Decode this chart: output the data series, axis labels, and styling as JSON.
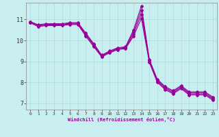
{
  "title": "",
  "xlabel": "Windchill (Refroidissement éolien,°C)",
  "ylabel": "",
  "bg_color": "#c8eef0",
  "grid_color": "#aadddd",
  "line_color": "#990099",
  "marker": "D",
  "markersize": 2.0,
  "linewidth": 0.8,
  "xlim": [
    -0.5,
    23.5
  ],
  "ylim": [
    6.7,
    11.8
  ],
  "yticks": [
    7,
    8,
    9,
    10,
    11
  ],
  "xticks": [
    0,
    1,
    2,
    3,
    4,
    5,
    6,
    7,
    8,
    9,
    10,
    11,
    12,
    13,
    14,
    15,
    16,
    17,
    18,
    19,
    20,
    21,
    22,
    23
  ],
  "series": [
    [
      10.9,
      10.75,
      10.8,
      10.8,
      10.8,
      10.85,
      10.85,
      10.35,
      9.85,
      9.3,
      9.5,
      9.65,
      9.7,
      10.5,
      11.65,
      9.1,
      8.15,
      7.8,
      7.6,
      7.85,
      7.55,
      7.55,
      7.55,
      7.3
    ],
    [
      10.88,
      10.72,
      10.77,
      10.77,
      10.77,
      10.82,
      10.82,
      10.3,
      9.8,
      9.27,
      9.47,
      9.62,
      9.67,
      10.4,
      11.45,
      9.05,
      8.1,
      7.75,
      7.55,
      7.8,
      7.5,
      7.5,
      7.5,
      7.25
    ],
    [
      10.86,
      10.69,
      10.74,
      10.74,
      10.74,
      10.79,
      10.79,
      10.25,
      9.75,
      9.24,
      9.44,
      9.59,
      9.64,
      10.3,
      11.25,
      9.0,
      8.05,
      7.7,
      7.5,
      7.75,
      7.45,
      7.45,
      7.45,
      7.2
    ],
    [
      10.84,
      10.66,
      10.71,
      10.71,
      10.71,
      10.76,
      10.76,
      10.2,
      9.7,
      9.21,
      9.41,
      9.56,
      9.61,
      10.2,
      11.05,
      8.95,
      8.0,
      7.65,
      7.45,
      7.7,
      7.4,
      7.4,
      7.4,
      7.15
    ]
  ]
}
